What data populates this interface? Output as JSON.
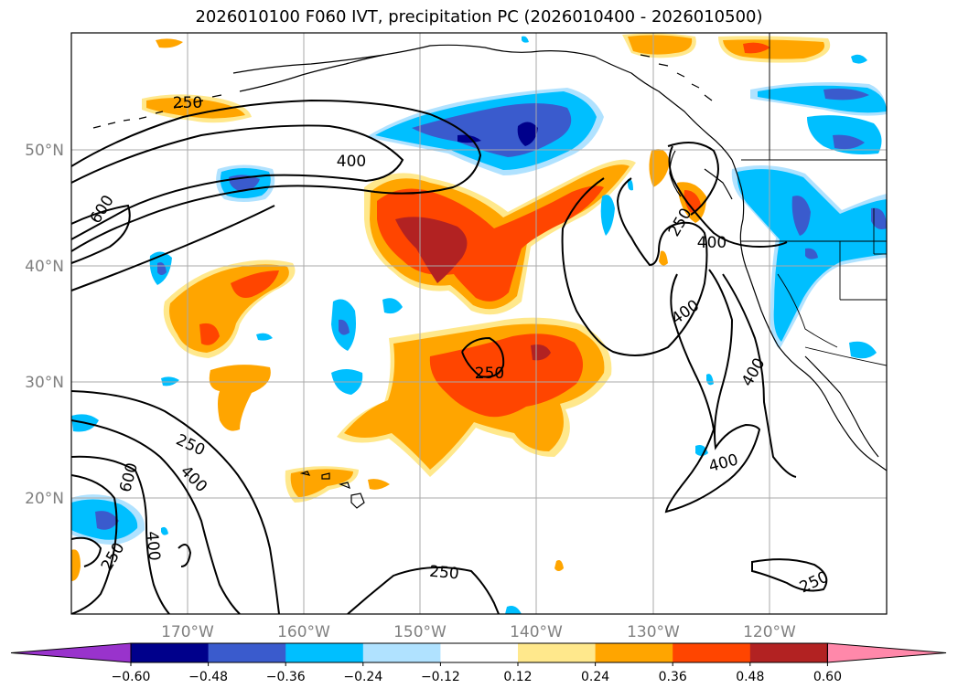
{
  "title": "2026010100 F060 IVT, precipitation PC (2026010400 - 2026010500)",
  "map": {
    "lon_ticks": [
      "170°W",
      "160°W",
      "150°W",
      "140°W",
      "130°W",
      "120°W"
    ],
    "lat_ticks": [
      "50°N",
      "40°N",
      "30°N",
      "20°N"
    ],
    "ivt_contour_labels": [
      "250",
      "400",
      "600",
      "400",
      "250",
      "400",
      "400",
      "400",
      "250",
      "600",
      "400",
      "250",
      "400",
      "250",
      "400",
      "250",
      "250"
    ]
  },
  "colorbar": {
    "ticks": [
      "−0.60",
      "−0.48",
      "−0.36",
      "−0.24",
      "−0.12",
      "0.12",
      "0.24",
      "0.36",
      "0.48",
      "0.60"
    ],
    "colors": [
      "#9933cc",
      "#00008b",
      "#3a5bcd",
      "#00bfff",
      "#b0e2ff",
      "#ffffff",
      "#ffe88c",
      "#ffa500",
      "#ff4500",
      "#b22222",
      "#ff88aa"
    ]
  },
  "colors": {
    "frame": "#000000",
    "grid": "#aaaaaa",
    "coast": "#000000"
  }
}
